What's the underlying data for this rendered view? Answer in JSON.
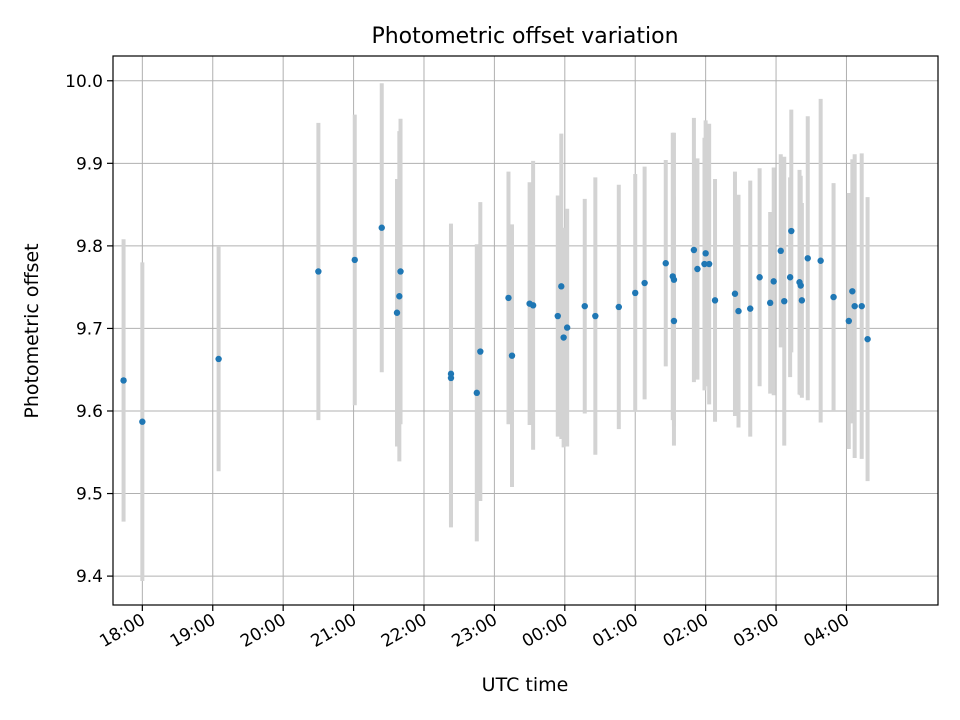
{
  "chart_data": {
    "type": "scatter",
    "title": "Photometric offset variation",
    "xlabel": "UTC time",
    "ylabel": "Photometric offset",
    "grid": true,
    "ylim": [
      9.365,
      10.03
    ],
    "xlim": [
      "17:35",
      "05:18"
    ],
    "x_ticks": [
      "18:00",
      "19:00",
      "20:00",
      "21:00",
      "22:00",
      "23:00",
      "00:00",
      "01:00",
      "02:00",
      "03:00",
      "04:00"
    ],
    "y_ticks": [
      "9.4",
      "9.5",
      "9.6",
      "9.7",
      "9.8",
      "9.9",
      "10.0"
    ],
    "colors": {
      "point": "#1f77b4",
      "errorbar": "#d3d3d3",
      "grid": "#b0b0b0",
      "axes": "#000000"
    },
    "series": [
      {
        "x": [
          "17:44",
          "18:00",
          "19:05",
          "20:30",
          "21:01",
          "21:24",
          "21:37",
          "21:39",
          "21:40",
          "22:23",
          "22:23",
          "22:45",
          "22:48",
          "23:12",
          "23:15",
          "23:30",
          "23:33",
          "23:54",
          "23:57",
          "23:59",
          "00:02",
          "00:17",
          "00:26",
          "00:46",
          "01:00",
          "01:08",
          "01:26",
          "01:32",
          "01:33",
          "01:33",
          "01:50",
          "01:53",
          "01:59",
          "02:00",
          "02:03",
          "02:08",
          "02:25",
          "02:28",
          "02:38",
          "02:46",
          "02:55",
          "02:58",
          "03:04",
          "03:07",
          "03:12",
          "03:13",
          "03:20",
          "03:21",
          "03:22",
          "03:27",
          "03:38",
          "03:49",
          "04:02",
          "04:05",
          "04:07",
          "04:13",
          "04:18"
        ],
        "y": [
          9.637,
          9.587,
          9.663,
          9.769,
          9.783,
          9.822,
          9.719,
          9.739,
          9.769,
          9.64,
          9.645,
          9.622,
          9.672,
          9.737,
          9.667,
          9.73,
          9.728,
          9.715,
          9.751,
          9.689,
          9.701,
          9.727,
          9.715,
          9.726,
          9.743,
          9.755,
          9.779,
          9.763,
          9.759,
          9.709,
          9.795,
          9.772,
          9.778,
          9.791,
          9.778,
          9.734,
          9.742,
          9.721,
          9.724,
          9.762,
          9.731,
          9.757,
          9.794,
          9.733,
          9.762,
          9.818,
          9.756,
          9.752,
          9.734,
          9.785,
          9.782,
          9.738,
          9.709,
          9.745,
          9.727,
          9.727,
          9.687
        ],
        "yerr": [
          0.171,
          0.193,
          0.136,
          0.18,
          0.176,
          0.175,
          0.162,
          0.2,
          0.185,
          0.181,
          0.182,
          0.18,
          0.181,
          0.153,
          0.159,
          0.147,
          0.175,
          0.146,
          0.185,
          0.133,
          0.144,
          0.13,
          0.168,
          0.148,
          0.144,
          0.141,
          0.125,
          0.174,
          0.178,
          0.151,
          0.16,
          0.134,
          0.153,
          0.161,
          0.17,
          0.147,
          0.148,
          0.141,
          0.155,
          0.132,
          0.11,
          0.138,
          0.117,
          0.175,
          0.121,
          0.147,
          0.136,
          0.133,
          0.118,
          0.172,
          0.196,
          0.138,
          0.155,
          0.16,
          0.184,
          0.185,
          0.172
        ]
      }
    ]
  }
}
